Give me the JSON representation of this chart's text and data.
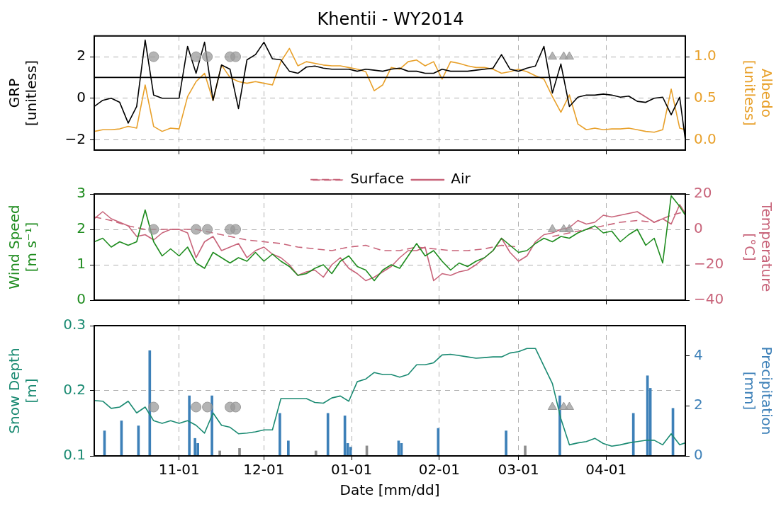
{
  "chart_data": [
    {
      "type": "line",
      "title": "Khentii - WY2014",
      "ylabel": "GRP\n[unitless]",
      "y2label": "Albedo\n[unitless]",
      "x": [
        "2013-10-02",
        "2013-10-05",
        "2013-10-08",
        "2013-10-11",
        "2013-10-14",
        "2013-10-17",
        "2013-10-20",
        "2013-10-23",
        "2013-10-26",
        "2013-10-29",
        "2013-11-01",
        "2013-11-04",
        "2013-11-07",
        "2013-11-10",
        "2013-11-13",
        "2013-11-16",
        "2013-11-19",
        "2013-11-22",
        "2013-11-25",
        "2013-11-28",
        "2013-12-01",
        "2013-12-04",
        "2013-12-07",
        "2013-12-10",
        "2013-12-13",
        "2013-12-16",
        "2013-12-19",
        "2013-12-22",
        "2013-12-25",
        "2013-12-28",
        "2013-12-31",
        "2014-01-03",
        "2014-01-06",
        "2014-01-09",
        "2014-01-12",
        "2014-01-15",
        "2014-01-18",
        "2014-01-21",
        "2014-01-24",
        "2014-01-27",
        "2014-01-30",
        "2014-02-02",
        "2014-02-05",
        "2014-02-08",
        "2014-02-11",
        "2014-02-14",
        "2014-02-17",
        "2014-02-20",
        "2014-02-23",
        "2014-02-26",
        "2014-03-01",
        "2014-03-04",
        "2014-03-07",
        "2014-03-10",
        "2014-03-13",
        "2014-03-16",
        "2014-03-19",
        "2014-03-22",
        "2014-03-25",
        "2014-03-28",
        "2014-03-31",
        "2014-04-03",
        "2014-04-06",
        "2014-04-09",
        "2014-04-12",
        "2014-04-15",
        "2014-04-18",
        "2014-04-21",
        "2014-04-24",
        "2014-04-27",
        "2014-04-29"
      ],
      "xlim": [
        "2013-10-02",
        "2014-04-29"
      ],
      "xticks": [
        {
          "value": "2013-11-01",
          "label": null
        },
        {
          "value": "2013-12-01",
          "label": null
        },
        {
          "value": "2014-01-01",
          "label": null
        },
        {
          "value": "2014-02-01",
          "label": null
        },
        {
          "value": "2014-03-01",
          "label": null
        },
        {
          "value": "2014-04-01",
          "label": null
        }
      ],
      "ylim": [
        -2.5,
        3
      ],
      "yticks": [
        {
          "value": -2,
          "label": "−2"
        },
        0,
        2
      ],
      "y2lim": [
        -0.125,
        1.25
      ],
      "y2ticks": [
        {
          "value": 0,
          "label": "0.0"
        },
        {
          "value": 0.5,
          "label": "0.5"
        },
        {
          "value": 1,
          "label": "1.0"
        }
      ],
      "grid": true,
      "tick_labels": "y",
      "ref_lines": [
        {
          "axis": "y",
          "value": 1,
          "color": "#000000"
        }
      ],
      "series": [
        {
          "color": "#000000",
          "values": [
            -0.4,
            -0.1,
            0,
            -0.2,
            -1.2,
            -0.4,
            2.8,
            0.15,
            0,
            0,
            0,
            2.5,
            1.2,
            2.7,
            -0.1,
            1.6,
            1.4,
            -0.5,
            1.85,
            2.1,
            2.7,
            1.9,
            1.85,
            1.3,
            1.2,
            1.5,
            1.55,
            1.45,
            1.4,
            1.4,
            1.4,
            1.3,
            1.4,
            1.35,
            1.3,
            1.4,
            1.45,
            1.3,
            1.3,
            1.2,
            1.2,
            1.4,
            1.3,
            1.3,
            1.3,
            1.35,
            1.4,
            1.45,
            2.1,
            1.4,
            1.3,
            1.45,
            1.55,
            2.5,
            0.25,
            1.65,
            -0.4,
            0.05,
            0.15,
            0.15,
            0.2,
            0.15,
            0.05,
            0.1,
            -0.15,
            -0.2,
            0,
            0.05,
            -0.8,
            0.05,
            -2.0
          ]
        },
        {
          "color": "#e8a02a",
          "axis": "y2",
          "values": [
            0.1,
            0.12,
            0.12,
            0.13,
            0.16,
            0.14,
            0.66,
            0.16,
            0.1,
            0.14,
            0.13,
            0.52,
            0.7,
            0.8,
            0.47,
            0.9,
            0.75,
            0.7,
            0.68,
            0.7,
            0.68,
            0.66,
            0.94,
            1.1,
            0.89,
            0.94,
            0.92,
            0.9,
            0.89,
            0.89,
            0.87,
            0.85,
            0.82,
            0.59,
            0.66,
            0.87,
            0.85,
            0.94,
            0.96,
            0.89,
            0.94,
            0.73,
            0.94,
            0.92,
            0.89,
            0.87,
            0.87,
            0.85,
            0.8,
            0.82,
            0.85,
            0.82,
            0.77,
            0.73,
            0.52,
            0.33,
            0.54,
            0.19,
            0.12,
            0.14,
            0.12,
            0.13,
            0.13,
            0.14,
            0.12,
            0.1,
            0.09,
            0.12,
            0.61,
            0.14,
            0.12
          ]
        },
        {
          "type": "scatter",
          "marker": "circle",
          "color": "#999999",
          "x": [
            "2013-10-23",
            "2013-11-07",
            "2013-11-11",
            "2013-11-19",
            "2013-11-21"
          ],
          "values": [
            2,
            2,
            2,
            2,
            2
          ]
        },
        {
          "type": "scatter",
          "marker": "triangle",
          "color": "#999999",
          "x": [
            "2014-03-13",
            "2014-03-17",
            "2014-03-19"
          ],
          "values": [
            2,
            2,
            2
          ]
        }
      ]
    },
    {
      "type": "line",
      "ylabel": "Wind Speed\n[m s⁻¹]",
      "y2label": "Temperature\n[°C]",
      "legend": "top",
      "x": [
        "2013-10-02",
        "2013-10-05",
        "2013-10-08",
        "2013-10-11",
        "2013-10-14",
        "2013-10-17",
        "2013-10-20",
        "2013-10-23",
        "2013-10-26",
        "2013-10-29",
        "2013-11-01",
        "2013-11-04",
        "2013-11-07",
        "2013-11-10",
        "2013-11-13",
        "2013-11-16",
        "2013-11-19",
        "2013-11-22",
        "2013-11-25",
        "2013-11-28",
        "2013-12-01",
        "2013-12-04",
        "2013-12-07",
        "2013-12-10",
        "2013-12-13",
        "2013-12-16",
        "2013-12-19",
        "2013-12-22",
        "2013-12-25",
        "2013-12-28",
        "2013-12-31",
        "2014-01-03",
        "2014-01-06",
        "2014-01-09",
        "2014-01-12",
        "2014-01-15",
        "2014-01-18",
        "2014-01-21",
        "2014-01-24",
        "2014-01-27",
        "2014-01-30",
        "2014-02-02",
        "2014-02-05",
        "2014-02-08",
        "2014-02-11",
        "2014-02-14",
        "2014-02-17",
        "2014-02-20",
        "2014-02-23",
        "2014-02-26",
        "2014-03-01",
        "2014-03-04",
        "2014-03-07",
        "2014-03-10",
        "2014-03-13",
        "2014-03-16",
        "2014-03-19",
        "2014-03-22",
        "2014-03-25",
        "2014-03-28",
        "2014-03-31",
        "2014-04-03",
        "2014-04-06",
        "2014-04-09",
        "2014-04-12",
        "2014-04-15",
        "2014-04-18",
        "2014-04-21",
        "2014-04-24",
        "2014-04-27",
        "2014-04-29"
      ],
      "xlim": [
        "2013-10-02",
        "2014-04-29"
      ],
      "xticks": [
        {
          "value": "2013-11-01",
          "label": null
        },
        {
          "value": "2013-12-01",
          "label": null
        },
        {
          "value": "2014-01-01",
          "label": null
        },
        {
          "value": "2014-02-01",
          "label": null
        },
        {
          "value": "2014-03-01",
          "label": null
        },
        {
          "value": "2014-04-01",
          "label": null
        }
      ],
      "ylim": [
        0,
        3
      ],
      "yticks": [
        0,
        1,
        2,
        3
      ],
      "y2lim": [
        -40,
        20
      ],
      "y2ticks": [
        {
          "value": -40,
          "label": "−40"
        },
        {
          "value": -20,
          "label": "−20"
        },
        0,
        20
      ],
      "grid": true,
      "tick_labels": "y",
      "series": [
        {
          "color": "#1f8c1f",
          "values": [
            1.65,
            1.75,
            1.5,
            1.65,
            1.55,
            1.65,
            2.55,
            1.65,
            1.25,
            1.45,
            1.25,
            1.5,
            1.05,
            0.9,
            1.35,
            1.2,
            1.05,
            1.2,
            1.1,
            1.35,
            1.1,
            1.3,
            1.1,
            0.95,
            0.7,
            0.75,
            0.9,
            1.0,
            0.75,
            1.1,
            1.25,
            0.95,
            0.85,
            0.55,
            0.85,
            1.0,
            0.9,
            1.25,
            1.6,
            1.25,
            1.4,
            1.1,
            0.85,
            1.05,
            0.95,
            1.1,
            1.2,
            1.4,
            1.75,
            1.55,
            1.35,
            1.4,
            1.6,
            1.75,
            1.65,
            1.8,
            1.75,
            1.9,
            2.0,
            2.1,
            1.9,
            1.95,
            1.65,
            1.85,
            2.0,
            1.55,
            1.75,
            1.05,
            2.95,
            2.65,
            2.4
          ]
        },
        {
          "name": "Surface",
          "color": "#c8647a",
          "axis": "y2",
          "line_style": "dashed",
          "x": [
            "2013-10-02",
            "2013-10-08",
            "2013-10-14",
            "2013-10-20",
            "2013-10-26",
            "2013-11-01",
            "2013-11-07",
            "2013-11-13",
            "2013-11-19",
            "2013-11-25",
            "2013-12-01",
            "2013-12-07",
            "2013-12-13",
            "2013-12-19",
            "2013-12-25",
            "2013-12-31",
            "2014-01-06",
            "2014-01-12",
            "2014-01-18",
            "2014-01-24",
            "2014-01-30",
            "2014-02-05",
            "2014-02-11",
            "2014-02-17",
            "2014-02-23",
            "2014-03-01",
            "2014-03-07",
            "2014-03-13",
            "2014-03-19",
            "2014-03-25",
            "2014-03-31",
            "2014-04-06",
            "2014-04-12",
            "2014-04-18",
            "2014-04-24",
            "2014-04-29"
          ],
          "values": [
            7,
            5,
            2,
            0,
            0,
            0,
            0,
            -2,
            -4,
            -6,
            -7,
            -8,
            -10,
            -11,
            -12,
            -10,
            -9,
            -12,
            -12,
            -10,
            -11,
            -12,
            -12,
            -11,
            -9,
            -10,
            null,
            -4,
            -2,
            0,
            2,
            4,
            5,
            4,
            8,
            10
          ]
        },
        {
          "name": "Air",
          "color": "#c8647a",
          "axis": "y2",
          "line_style": "solid",
          "values": [
            6,
            10,
            6,
            4,
            2,
            -4,
            -3,
            -6,
            -2,
            0,
            0,
            -2,
            -16,
            -7,
            -4,
            -12,
            -10,
            -8,
            -16,
            -12,
            -10,
            -14,
            -16,
            -20,
            -26,
            -24,
            -23,
            -27,
            -20,
            -16,
            -22,
            -25,
            -29,
            -27,
            -24,
            -21,
            -16,
            -12,
            -12,
            -10,
            -29,
            -25,
            -26,
            -24,
            -23,
            -20,
            -16,
            -12,
            -5,
            -13,
            -18,
            -15,
            -7,
            -3,
            -2,
            0,
            1,
            5,
            3,
            4,
            8,
            7,
            8,
            9,
            10,
            7,
            4,
            6,
            3,
            14,
            9
          ]
        },
        {
          "type": "scatter",
          "marker": "circle",
          "color": "#999999",
          "x": [
            "2013-10-23",
            "2013-11-07",
            "2013-11-11",
            "2013-11-19",
            "2013-11-21"
          ],
          "values": [
            2,
            2,
            2,
            2,
            2
          ]
        },
        {
          "type": "scatter",
          "marker": "triangle",
          "color": "#999999",
          "x": [
            "2014-03-13",
            "2014-03-17",
            "2014-03-19"
          ],
          "values": [
            2,
            2,
            2
          ]
        }
      ]
    },
    {
      "type": "line",
      "ylabel": "Snow Depth\n[m]",
      "y2label": "Precipitation\n[mm]",
      "xlabel": "Date [mm/dd]",
      "x": [
        "2013-10-02",
        "2013-10-05",
        "2013-10-08",
        "2013-10-11",
        "2013-10-14",
        "2013-10-17",
        "2013-10-20",
        "2013-10-23",
        "2013-10-26",
        "2013-10-29",
        "2013-11-01",
        "2013-11-04",
        "2013-11-07",
        "2013-11-10",
        "2013-11-13",
        "2013-11-16",
        "2013-11-19",
        "2013-11-22",
        "2013-11-25",
        "2013-11-28",
        "2013-12-01",
        "2013-12-04",
        "2013-12-07",
        "2013-12-10",
        "2013-12-13",
        "2013-12-16",
        "2013-12-19",
        "2013-12-22",
        "2013-12-25",
        "2013-12-28",
        "2013-12-31",
        "2014-01-03",
        "2014-01-06",
        "2014-01-09",
        "2014-01-12",
        "2014-01-15",
        "2014-01-18",
        "2014-01-21",
        "2014-01-24",
        "2014-01-27",
        "2014-01-30",
        "2014-02-02",
        "2014-02-05",
        "2014-02-08",
        "2014-02-11",
        "2014-02-14",
        "2014-02-17",
        "2014-02-20",
        "2014-02-23",
        "2014-02-26",
        "2014-03-01",
        "2014-03-04",
        "2014-03-07",
        "2014-03-10",
        "2014-03-13",
        "2014-03-16",
        "2014-03-19",
        "2014-03-22",
        "2014-03-25",
        "2014-03-28",
        "2014-03-31",
        "2014-04-03",
        "2014-04-06",
        "2014-04-09",
        "2014-04-12",
        "2014-04-15",
        "2014-04-18",
        "2014-04-21",
        "2014-04-24",
        "2014-04-27",
        "2014-04-29"
      ],
      "xlim": [
        "2013-10-02",
        "2014-04-29"
      ],
      "xticks": [
        {
          "value": "2013-11-01",
          "label": "11-01"
        },
        {
          "value": "2013-12-01",
          "label": "12-01"
        },
        {
          "value": "2014-01-01",
          "label": "01-01"
        },
        {
          "value": "2014-02-01",
          "label": "02-01"
        },
        {
          "value": "2014-03-01",
          "label": "03-01"
        },
        {
          "value": "2014-04-01",
          "label": "04-01"
        }
      ],
      "ylim": [
        0.1,
        0.3
      ],
      "yticks": [
        0.1,
        0.2,
        0.3
      ],
      "y2lim": [
        0,
        5.2
      ],
      "y2ticks": [
        0,
        2,
        4
      ],
      "grid": true,
      "series": [
        {
          "type": "bar",
          "color": "#3d80b8",
          "axis": "y2",
          "x": [
            "2013-10-06",
            "2013-10-12",
            "2013-10-18",
            "2013-10-22",
            "2013-11-05",
            "2013-11-07",
            "2013-11-08",
            "2013-11-13",
            "2013-12-07",
            "2013-12-10",
            "2013-12-24",
            "2013-12-30",
            "2013-12-31",
            "2014-01-01",
            "2014-01-18",
            "2014-01-19",
            "2014-02-01",
            "2014-02-25",
            "2014-03-16",
            "2014-04-11",
            "2014-04-16",
            "2014-04-17",
            "2014-04-25"
          ],
          "values": [
            1.0,
            1.4,
            1.2,
            4.2,
            2.4,
            0.7,
            0.5,
            2.4,
            1.7,
            0.6,
            1.7,
            1.6,
            0.5,
            0.35,
            0.6,
            0.5,
            1.1,
            1.0,
            2.4,
            1.7,
            3.2,
            2.7,
            1.9
          ]
        },
        {
          "type": "bar",
          "color": "#8c8c8c",
          "axis": "y2",
          "x": [
            "2013-11-15",
            "2013-11-22",
            "2013-12-19",
            "2014-01-06",
            "2014-03-03"
          ],
          "values": [
            0.2,
            0.3,
            0.2,
            0.4,
            0.4
          ]
        },
        {
          "color": "#1a8a72",
          "values": [
            0.185,
            0.184,
            0.173,
            0.175,
            0.184,
            0.166,
            0.175,
            0.154,
            0.15,
            0.154,
            0.15,
            0.154,
            0.147,
            0.135,
            0.166,
            0.147,
            0.144,
            0.134,
            0.135,
            0.137,
            0.14,
            0.14,
            0.188,
            0.188,
            0.188,
            0.188,
            0.182,
            0.181,
            0.189,
            0.192,
            0.184,
            0.214,
            0.218,
            0.228,
            0.225,
            0.225,
            0.221,
            0.225,
            0.24,
            0.24,
            0.243,
            0.255,
            0.256,
            0.254,
            0.252,
            0.25,
            0.251,
            0.252,
            0.252,
            0.258,
            0.26,
            0.265,
            0.265,
            0.238,
            0.211,
            0.157,
            0.117,
            0.12,
            0.122,
            0.127,
            0.119,
            0.115,
            0.117,
            0.12,
            0.122,
            0.124,
            0.124,
            0.117,
            0.134,
            0.117,
            0.12
          ]
        },
        {
          "type": "scatter",
          "marker": "circle",
          "color": "#999999",
          "x": [
            "2013-10-23",
            "2013-11-07",
            "2013-11-11",
            "2013-11-19",
            "2013-11-21"
          ],
          "values": [
            0.175,
            0.175,
            0.175,
            0.175,
            0.175
          ]
        },
        {
          "type": "scatter",
          "marker": "triangle",
          "color": "#999999",
          "x": [
            "2014-03-13",
            "2014-03-17",
            "2014-03-19"
          ],
          "values": [
            0.175,
            0.175,
            0.175
          ]
        }
      ]
    }
  ]
}
